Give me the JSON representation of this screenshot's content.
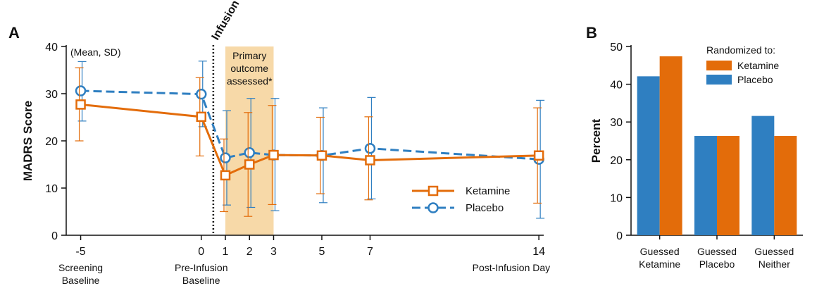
{
  "colors": {
    "ketamine": "#e36c0a",
    "placebo": "#2f7fc1",
    "shade": "#f7d9a8"
  },
  "chart_data": [
    {
      "panel": "A",
      "type": "line",
      "ylabel": "MADRS Score",
      "ylim": [
        0,
        40
      ],
      "yticks": [
        0,
        10,
        20,
        30,
        40
      ],
      "xticks": [
        -5,
        0,
        1,
        2,
        3,
        5,
        7,
        14
      ],
      "xlim": [
        -5.6,
        14.2
      ],
      "xgroup_labels": [
        {
          "x": -5,
          "line1": "Screening",
          "line2": "Baseline"
        },
        {
          "x": 0,
          "line1": "Pre-Infusion",
          "line2": "Baseline"
        },
        {
          "x": 14,
          "line1": "Post-Infusion Day",
          "line2": ""
        }
      ],
      "annotation_meansd": "(Mean, SD)",
      "infusion_label": "Infusion",
      "infusion_x": 0.5,
      "shaded_region": {
        "x": [
          1,
          3
        ],
        "lines": [
          "Primary",
          "outcome",
          "assessed*"
        ]
      },
      "series": [
        {
          "name": "Ketamine",
          "marker": "square",
          "points": [
            {
              "x": -5,
              "y": 27.7,
              "lo": 20.0,
              "hi": 35.5
            },
            {
              "x": 0,
              "y": 25.1,
              "lo": 16.8,
              "hi": 33.4
            },
            {
              "x": 1,
              "y": 12.7,
              "lo": 5.0,
              "hi": 20.4
            },
            {
              "x": 2,
              "y": 15.0,
              "lo": 4.0,
              "hi": 26.0
            },
            {
              "x": 3,
              "y": 17.0,
              "lo": 6.5,
              "hi": 27.5
            },
            {
              "x": 5,
              "y": 16.9,
              "lo": 8.8,
              "hi": 25.0
            },
            {
              "x": 7,
              "y": 15.9,
              "lo": 7.5,
              "hi": 25.1
            },
            {
              "x": 14,
              "y": 16.9,
              "lo": 6.8,
              "hi": 27.0
            }
          ]
        },
        {
          "name": "Placebo",
          "marker": "circle",
          "points": [
            {
              "x": -5,
              "y": 30.6,
              "lo": 24.2,
              "hi": 36.8
            },
            {
              "x": 0,
              "y": 29.9,
              "lo": 23.0,
              "hi": 36.9
            },
            {
              "x": 1,
              "y": 16.4,
              "lo": 6.4,
              "hi": 26.4
            },
            {
              "x": 2,
              "y": 17.5,
              "lo": 5.9,
              "hi": 29.0
            },
            {
              "x": 3,
              "y": 17.0,
              "lo": 5.2,
              "hi": 29.0
            },
            {
              "x": 5,
              "y": 16.9,
              "lo": 6.9,
              "hi": 27.0
            },
            {
              "x": 7,
              "y": 18.4,
              "lo": 7.7,
              "hi": 29.2
            },
            {
              "x": 14,
              "y": 16.1,
              "lo": 3.6,
              "hi": 28.6
            }
          ]
        }
      ],
      "legend_position": "bottom-right"
    },
    {
      "panel": "B",
      "type": "bar",
      "ylabel": "Percent",
      "ylim": [
        0,
        50
      ],
      "yticks": [
        0,
        10,
        20,
        30,
        40,
        50
      ],
      "categories": [
        {
          "line1": "Guessed",
          "line2": "Ketamine"
        },
        {
          "line1": "Guessed",
          "line2": "Placebo"
        },
        {
          "line1": "Guessed",
          "line2": "Neither"
        }
      ],
      "legend_title": "Randomized to:",
      "legend_position": "top-right",
      "series": [
        {
          "name": "Placebo",
          "values": [
            42.1,
            26.3,
            31.6
          ]
        },
        {
          "name": "Ketamine",
          "values": [
            47.4,
            26.3,
            26.3
          ]
        }
      ],
      "legend_order": [
        "Ketamine",
        "Placebo"
      ]
    }
  ]
}
